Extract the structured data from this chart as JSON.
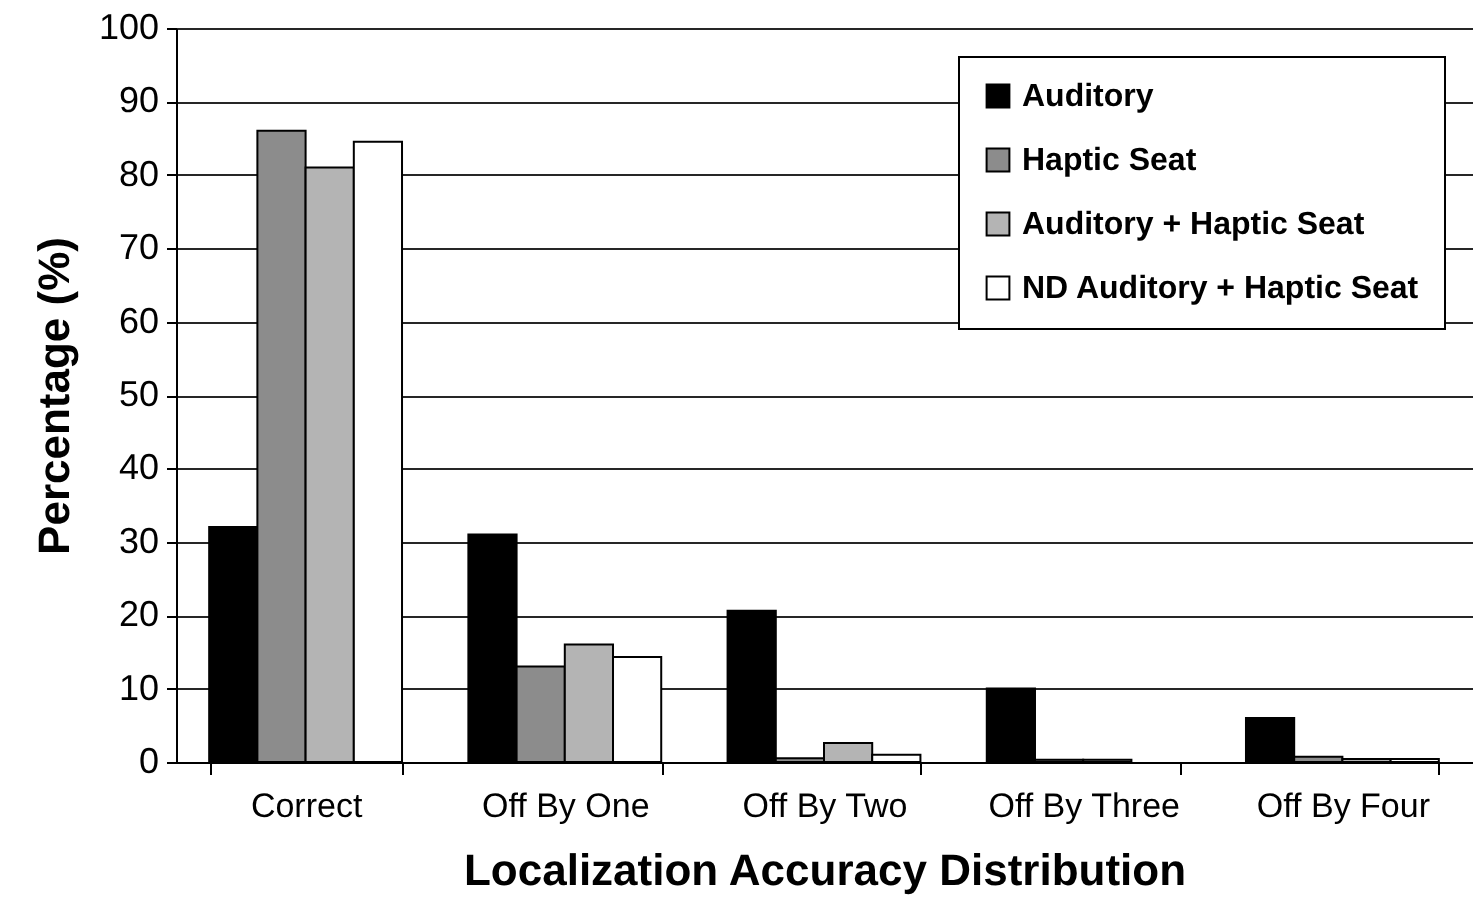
{
  "chart_data": {
    "type": "bar",
    "xlabel": "Localization Accuracy Distribution",
    "ylabel": "Percentage (%)",
    "categories": [
      "Correct",
      "Off By One",
      "Off By Two",
      "Off By Three",
      "Off By Four"
    ],
    "series": [
      {
        "name": "Auditory",
        "color": "#000000",
        "values": [
          32,
          31,
          20.6,
          10,
          6
        ]
      },
      {
        "name": "Haptic Seat",
        "color": "#8c8c8c",
        "values": [
          86,
          13,
          0.5,
          0.3,
          0.7
        ]
      },
      {
        "name": "Auditory + Haptic Seat",
        "color": "#b4b4b4",
        "values": [
          81,
          16,
          2.6,
          0.3,
          0.4
        ]
      },
      {
        "name": "ND Auditory + Haptic Seat",
        "color": "#ffffff",
        "values": [
          84.5,
          14.3,
          1,
          null,
          0.4
        ]
      }
    ],
    "ylim": [
      0,
      100
    ],
    "yticks": [
      0,
      10,
      20,
      30,
      40,
      50,
      60,
      70,
      80,
      90,
      100
    ],
    "grid": "y",
    "legend": "top right"
  }
}
